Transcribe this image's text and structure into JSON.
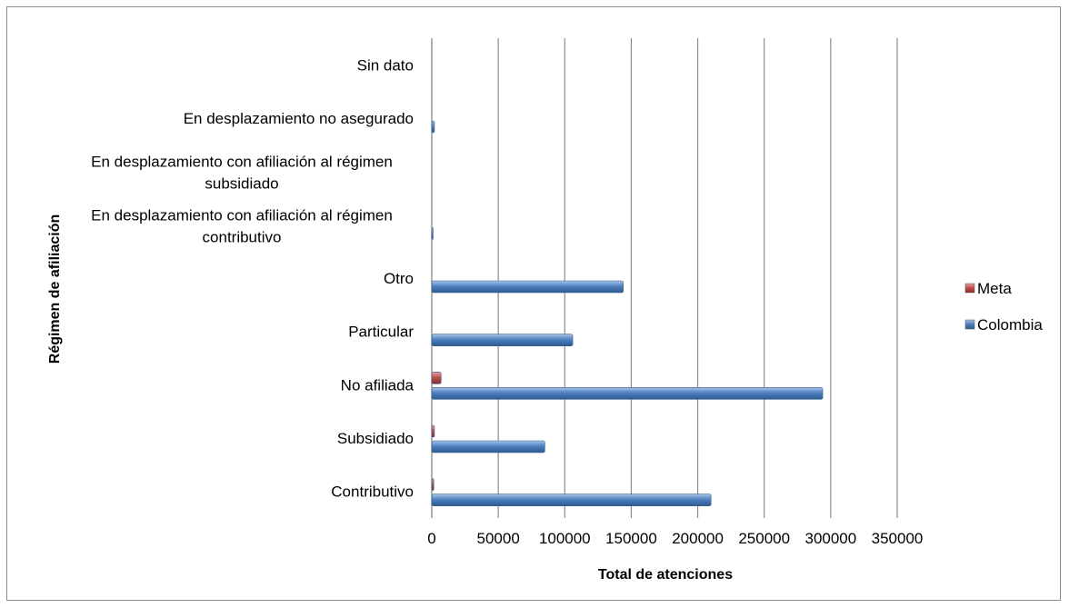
{
  "chart_data": {
    "type": "bar",
    "orientation": "horizontal",
    "xlabel": "Total de atenciones",
    "ylabel": "Régimen de afiliación",
    "xlim": [
      0,
      350000
    ],
    "x_ticks": [
      "0",
      "50000",
      "100000",
      "150000",
      "200000",
      "250000",
      "300000",
      "350000"
    ],
    "grid": true,
    "legend_position": "right",
    "categories": [
      "Contributivo",
      "Subsidiado",
      "No afiliada",
      "Particular",
      "Otro",
      "En desplazamiento con afiliación al régimen contributivo",
      "En desplazamiento con afiliación al régimen subsidiado",
      "En desplazamiento no asegurado",
      "Sin dato"
    ],
    "category_label_lines": [
      [
        "Contributivo"
      ],
      [
        "Subsidiado"
      ],
      [
        "No afiliada"
      ],
      [
        "Particular"
      ],
      [
        "Otro"
      ],
      [
        "En desplazamiento con afiliación al régimen",
        "contributivo"
      ],
      [
        "En desplazamiento con afiliación al régimen",
        "subsidiado"
      ],
      [
        "En desplazamiento no asegurado"
      ],
      [
        "Sin dato"
      ]
    ],
    "series": [
      {
        "name": "Meta",
        "color": "#c0504d",
        "values": [
          1500,
          2000,
          7000,
          0,
          0,
          0,
          0,
          0,
          0
        ]
      },
      {
        "name": "Colombia",
        "color": "#4f81bd",
        "values": [
          210000,
          85000,
          294000,
          106000,
          144000,
          1000,
          0,
          2000,
          0
        ]
      }
    ]
  }
}
